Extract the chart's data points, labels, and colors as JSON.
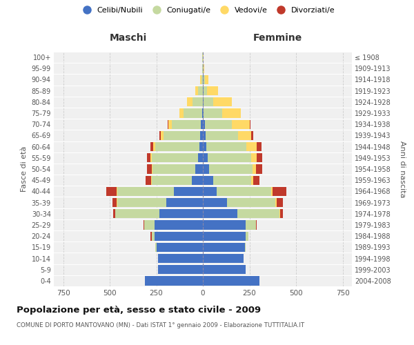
{
  "age_groups": [
    "0-4",
    "5-9",
    "10-14",
    "15-19",
    "20-24",
    "25-29",
    "30-34",
    "35-39",
    "40-44",
    "45-49",
    "50-54",
    "55-59",
    "60-64",
    "65-69",
    "70-74",
    "75-79",
    "80-84",
    "85-89",
    "90-94",
    "95-99",
    "100+"
  ],
  "birth_years": [
    "2004-2008",
    "1999-2003",
    "1994-1998",
    "1989-1993",
    "1984-1988",
    "1979-1983",
    "1974-1978",
    "1969-1973",
    "1964-1968",
    "1959-1963",
    "1954-1958",
    "1949-1953",
    "1944-1948",
    "1939-1943",
    "1934-1938",
    "1929-1933",
    "1924-1928",
    "1919-1923",
    "1914-1918",
    "1909-1913",
    "≤ 1908"
  ],
  "males": {
    "celibi": [
      310,
      240,
      240,
      250,
      260,
      260,
      235,
      195,
      155,
      60,
      40,
      25,
      20,
      15,
      10,
      5,
      0,
      0,
      0,
      0,
      0
    ],
    "coniugati": [
      0,
      0,
      0,
      5,
      15,
      55,
      235,
      265,
      305,
      215,
      230,
      250,
      235,
      195,
      155,
      100,
      55,
      25,
      8,
      3,
      2
    ],
    "vedovi": [
      0,
      0,
      0,
      0,
      0,
      0,
      2,
      2,
      3,
      3,
      5,
      5,
      10,
      15,
      20,
      20,
      30,
      15,
      5,
      1,
      0
    ],
    "divorziati": [
      0,
      0,
      0,
      0,
      5,
      5,
      10,
      25,
      55,
      30,
      25,
      20,
      15,
      8,
      5,
      0,
      0,
      0,
      0,
      0,
      0
    ]
  },
  "females": {
    "nubili": [
      305,
      230,
      220,
      225,
      230,
      230,
      185,
      130,
      75,
      55,
      35,
      25,
      20,
      15,
      10,
      5,
      5,
      3,
      2,
      0,
      0
    ],
    "coniugate": [
      0,
      0,
      0,
      5,
      15,
      55,
      225,
      260,
      290,
      205,
      230,
      235,
      215,
      175,
      145,
      100,
      50,
      20,
      8,
      3,
      1
    ],
    "vedove": [
      0,
      0,
      0,
      0,
      0,
      0,
      3,
      5,
      8,
      10,
      20,
      30,
      55,
      70,
      95,
      100,
      100,
      60,
      20,
      5,
      1
    ],
    "divorziate": [
      0,
      0,
      0,
      0,
      0,
      5,
      15,
      35,
      75,
      35,
      35,
      30,
      25,
      10,
      5,
      0,
      0,
      0,
      0,
      0,
      0
    ]
  },
  "colors": {
    "celibi": "#4472c4",
    "coniugati": "#c5d9a0",
    "vedovi": "#ffd966",
    "divorziati": "#c0392b"
  },
  "legend_labels": [
    "Celibi/Nubili",
    "Coniugati/e",
    "Vedovi/e",
    "Divorziati/e"
  ],
  "title": "Popolazione per età, sesso e stato civile - 2009",
  "subtitle": "COMUNE DI PORTO MANTOVANO (MN) - Dati ISTAT 1° gennaio 2009 - Elaborazione TUTTITALIA.IT",
  "maschi_label": "Maschi",
  "femmine_label": "Femmine",
  "ylabel_left": "Fasce di età",
  "ylabel_right": "Anni di nascita",
  "xlim": 800,
  "xtick_vals": [
    750,
    500,
    250,
    0,
    250,
    500,
    750
  ],
  "background_color": "#ffffff",
  "plot_bg": "#f0f0f0",
  "grid_color": "#cccccc"
}
